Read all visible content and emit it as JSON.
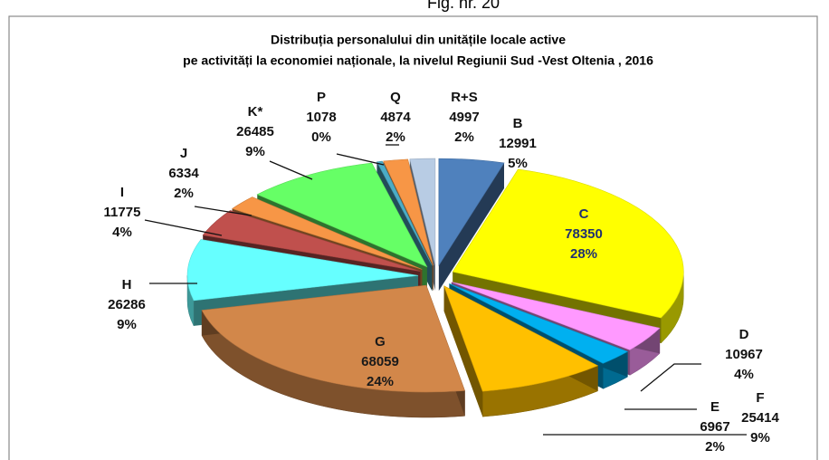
{
  "chart_data": {
    "type": "pie",
    "figure_label": "Fig. nr. 20",
    "title": [
      "Distribuția personalului  din unitățile locale active",
      "pe activități la economiei naționale, la nivelul Regiunii Sud -Vest Oltenia , 2016"
    ],
    "categories": [
      "B",
      "C",
      "D",
      "E",
      "F",
      "G",
      "H",
      "I",
      "J",
      "K*",
      "P",
      "Q",
      "R+S"
    ],
    "values": [
      12991,
      78350,
      10967,
      6967,
      25414,
      68059,
      26286,
      11775,
      6334,
      26485,
      1078,
      4874,
      4997
    ],
    "percent_labels": [
      "5%",
      "28%",
      "4%",
      "2%",
      "9%",
      "24%",
      "9%",
      "4%",
      "2%",
      "9%",
      "0%",
      "2%",
      "2%"
    ],
    "colors": [
      "#4f81bd",
      "#ffff00",
      "#ff99ff",
      "#00b0f0",
      "#ffc000",
      "#d2874a",
      "#66ffff",
      "#c0504d",
      "#f79646",
      "#66ff66",
      "#4bacc6",
      "#f79646",
      "#b8cce4"
    ],
    "start_angle": 0,
    "direction": "clockwise",
    "exploded": true
  }
}
